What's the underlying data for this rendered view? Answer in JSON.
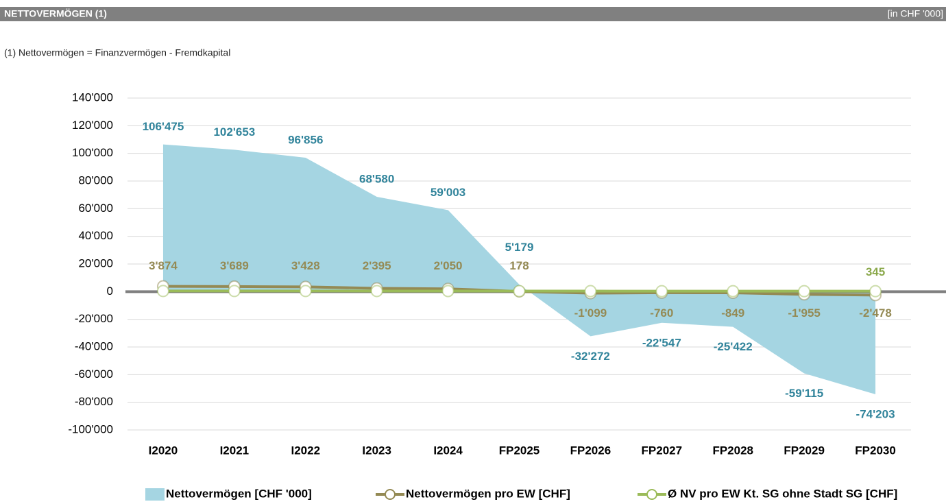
{
  "header": {
    "title": "NETTOVERMÖGEN (1)",
    "unit": "[in CHF '000]"
  },
  "note": "(1) Nettovermögen = Finanzvermögen - Fremdkapital",
  "chart_data": {
    "type": "area",
    "categories": [
      "I2020",
      "I2021",
      "I2022",
      "I2023",
      "I2024",
      "FP2025",
      "FP2026",
      "FP2027",
      "FP2028",
      "FP2029",
      "FP2030"
    ],
    "ylim": [
      -100000,
      140000
    ],
    "yticks": [
      {
        "value": -100000,
        "label": "-100'000"
      },
      {
        "value": -80000,
        "label": "-80'000"
      },
      {
        "value": -60000,
        "label": "-60'000"
      },
      {
        "value": -40000,
        "label": "-40'000"
      },
      {
        "value": -20000,
        "label": "-20'000"
      },
      0,
      {
        "value": 20000,
        "label": "20'000"
      },
      {
        "value": 40000,
        "label": "40'000"
      },
      {
        "value": 60000,
        "label": "60'000"
      },
      {
        "value": 80000,
        "label": "80'000"
      },
      {
        "value": 100000,
        "label": "100'000"
      },
      {
        "value": 120000,
        "label": "120'000"
      },
      {
        "value": 140000,
        "label": "140'000"
      }
    ],
    "grid": true,
    "series": [
      {
        "name": "Nettovermögen [CHF '000]",
        "type": "area",
        "color": "#a5d5e2",
        "label_color": "#31849b",
        "values": [
          106475,
          102653,
          96856,
          68580,
          59003,
          5179,
          -32272,
          -22547,
          -25422,
          -59115,
          -74203
        ],
        "value_labels": [
          "106'475",
          "102'653",
          "96'856",
          "68'580",
          "59'003",
          "5'179",
          "-32'272",
          "-22'547",
          "-25'422",
          "-59'115",
          "-74'203"
        ]
      },
      {
        "name": "Nettovermögen pro EW [CHF]",
        "type": "line",
        "color": "#948a54",
        "label_color": "#948a54",
        "values": [
          3874,
          3689,
          3428,
          2395,
          2050,
          178,
          -1099,
          -760,
          -849,
          -1955,
          -2478
        ],
        "value_labels": [
          "3'874",
          "3'689",
          "3'428",
          "2'395",
          "2'050",
          "178",
          "-1'099",
          "-760",
          "-849",
          "-1'955",
          "-2'478"
        ]
      },
      {
        "name": "Ø NV pro EW Kt. SG ohne Stadt SG  [CHF]",
        "type": "line",
        "color": "#9bbb59",
        "label_color": "#8aa84a",
        "values": [
          480,
          470,
          455,
          440,
          420,
          400,
          385,
          370,
          360,
          350,
          345
        ],
        "value_labels": [
          null,
          null,
          null,
          null,
          null,
          null,
          null,
          null,
          null,
          null,
          "345"
        ]
      }
    ]
  }
}
